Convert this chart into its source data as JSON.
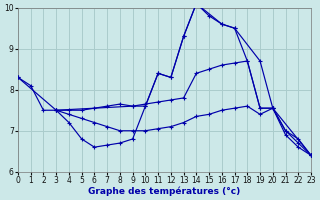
{
  "xlabel": "Graphe des températures (°c)",
  "bg_color": "#cce8e8",
  "grid_color": "#aacccc",
  "line_color": "#0000aa",
  "xlim": [
    0,
    23
  ],
  "ylim": [
    6,
    10
  ],
  "yticks": [
    6,
    7,
    8,
    9,
    10
  ],
  "xticks": [
    0,
    1,
    2,
    3,
    4,
    5,
    6,
    7,
    8,
    9,
    10,
    11,
    12,
    13,
    14,
    15,
    16,
    17,
    18,
    19,
    20,
    21,
    22,
    23
  ],
  "line1_x": [
    0,
    1,
    2,
    3,
    4,
    5,
    6,
    7,
    8,
    9,
    10,
    11,
    12,
    13,
    14,
    15,
    16,
    17,
    18,
    19,
    20,
    21,
    22,
    23
  ],
  "line1_y": [
    8.3,
    8.1,
    7.5,
    7.5,
    7.2,
    6.8,
    6.6,
    6.65,
    6.7,
    6.8,
    7.6,
    8.4,
    8.3,
    9.3,
    10.1,
    9.8,
    9.6,
    9.5,
    8.7,
    7.55,
    7.55,
    6.9,
    6.6,
    6.4
  ],
  "line2_x": [
    3,
    4,
    5,
    6,
    7,
    8,
    9,
    10,
    11,
    12,
    13,
    14,
    15,
    16,
    17,
    18,
    19,
    20,
    21,
    22,
    23
  ],
  "line2_y": [
    7.5,
    7.5,
    7.5,
    7.55,
    7.6,
    7.65,
    7.6,
    7.65,
    7.7,
    7.75,
    7.8,
    8.4,
    8.5,
    8.6,
    8.65,
    8.7,
    7.55,
    7.55,
    7.0,
    6.8,
    6.4
  ],
  "line3_x": [
    3,
    4,
    5,
    6,
    7,
    8,
    9,
    10,
    11,
    12,
    13,
    14,
    15,
    16,
    17,
    18,
    19,
    20,
    21,
    22,
    23
  ],
  "line3_y": [
    7.5,
    7.4,
    7.3,
    7.2,
    7.1,
    7.0,
    7.0,
    7.0,
    7.05,
    7.1,
    7.2,
    7.35,
    7.4,
    7.5,
    7.55,
    7.6,
    7.4,
    7.55,
    7.0,
    6.7,
    6.4
  ],
  "line4_x": [
    0,
    3,
    9,
    10,
    11,
    12,
    13,
    14,
    16,
    17,
    19,
    20,
    23
  ],
  "line4_y": [
    8.3,
    7.5,
    7.6,
    7.6,
    8.4,
    8.3,
    9.3,
    10.1,
    9.6,
    9.5,
    8.7,
    7.55,
    6.4
  ]
}
